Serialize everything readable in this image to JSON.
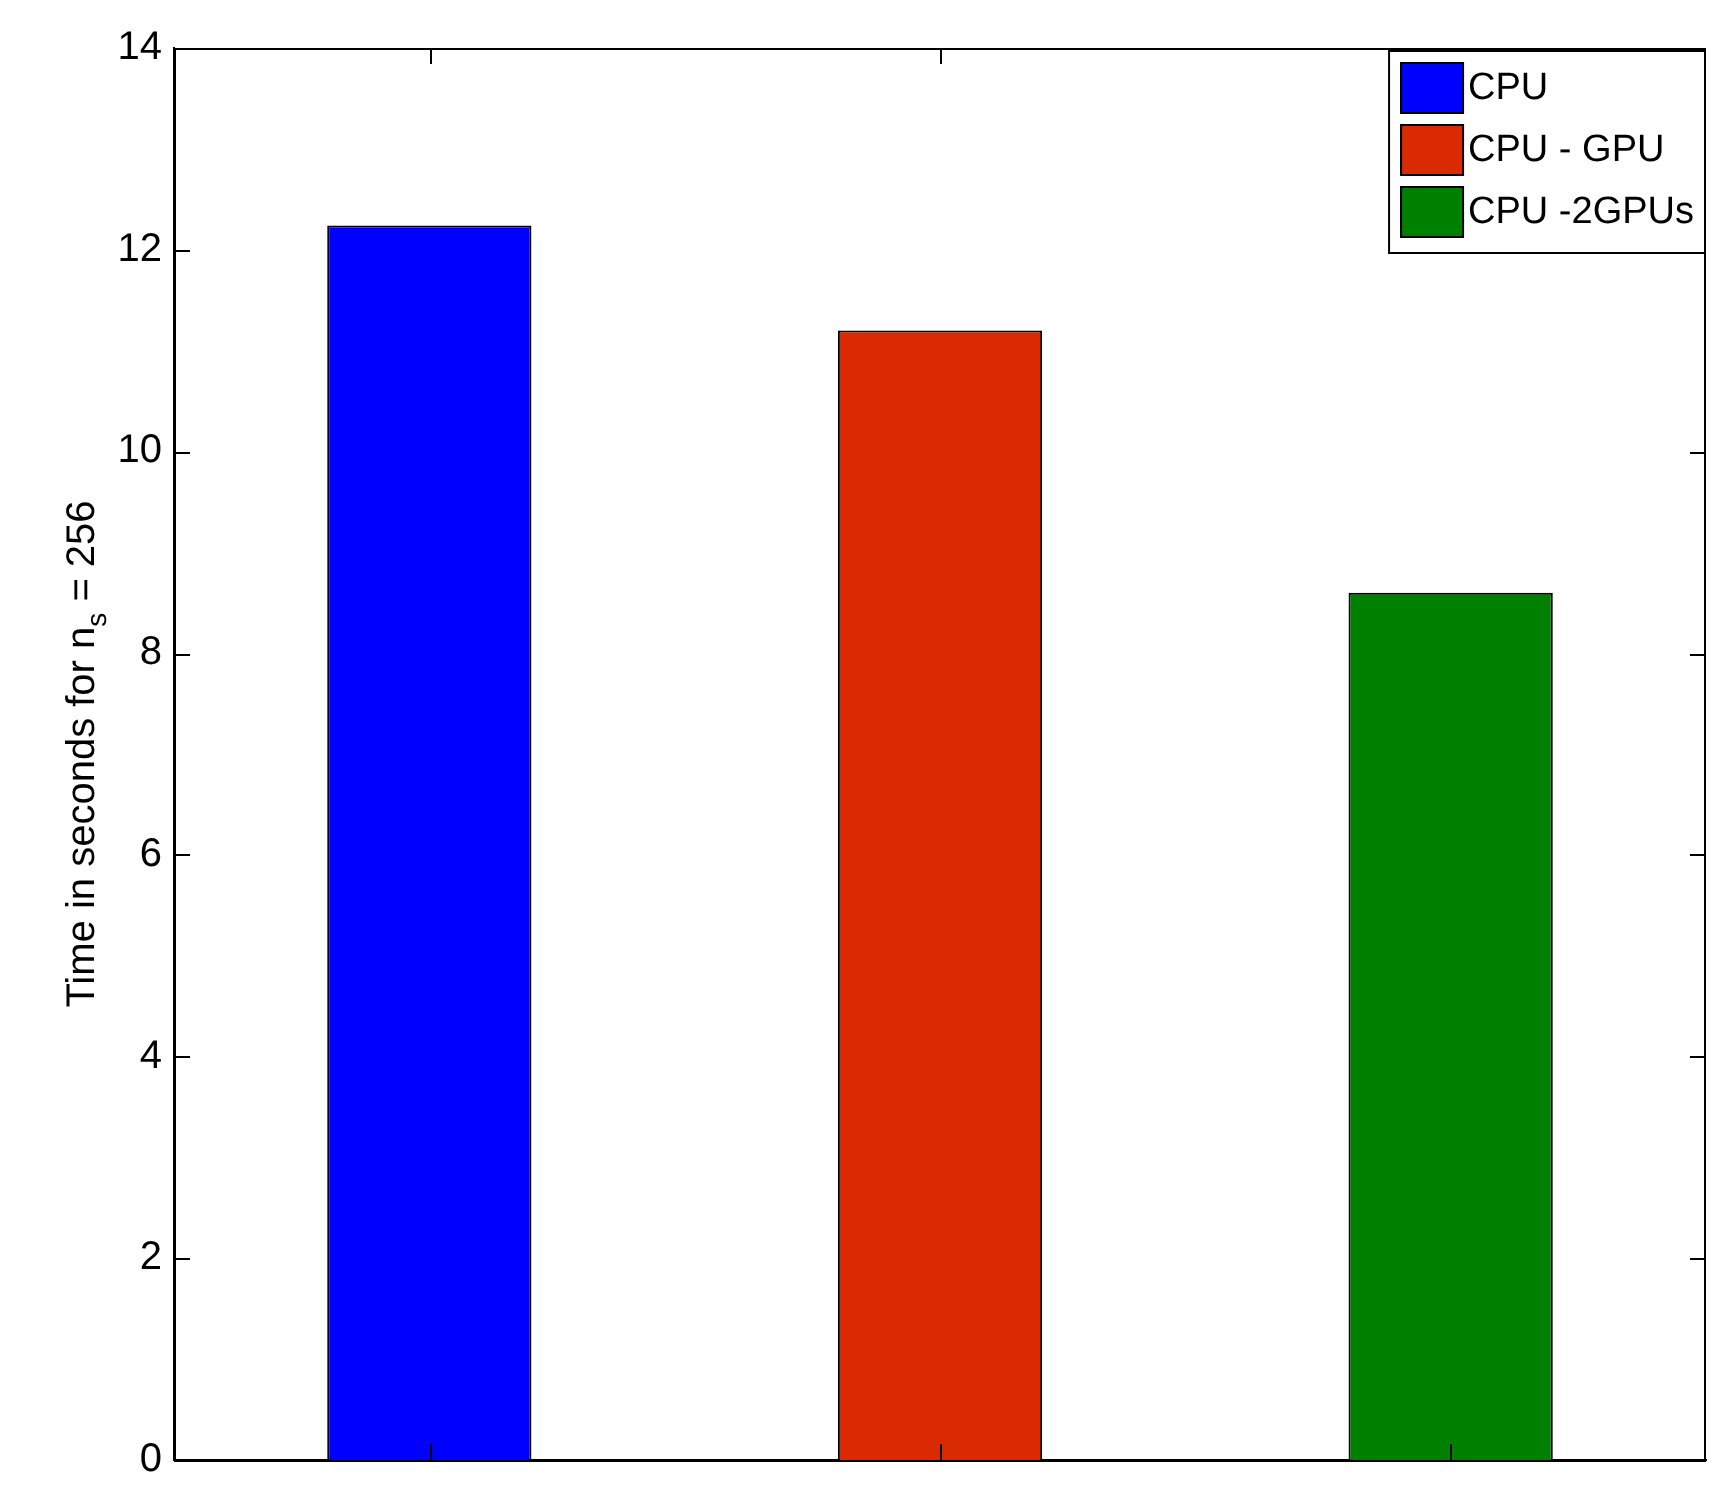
{
  "chart_data": {
    "type": "bar",
    "ylabel": "Time in seconds for n$_{s}$ = 256",
    "categories": [
      null,
      null,
      null
    ],
    "stacked": true,
    "series": [
      {
        "name": "CPU",
        "color": "#0000ff",
        "values": [
          12.24,
          null,
          null
        ]
      },
      {
        "name": "CPU - GPU",
        "color": "#d92a02",
        "values": [
          null,
          11.2,
          null
        ]
      },
      {
        "name": "CPU -2GPUs",
        "color": "#008000",
        "values": [
          null,
          null,
          8.6
        ]
      }
    ],
    "ylim": [
      0,
      14
    ],
    "yticks": [
      0,
      2,
      4,
      6,
      8,
      10,
      12,
      14
    ],
    "grid": false,
    "legend": "top right",
    "tick_labels": "y"
  }
}
